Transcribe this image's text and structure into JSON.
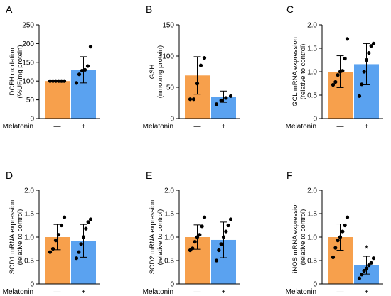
{
  "colors": {
    "control": "#f7a04c",
    "melatonin": "#5aa2f0",
    "axis": "#000000",
    "dot": "#000000"
  },
  "treatment_label": "Melatonin",
  "treatment_ticks": [
    "—",
    "+"
  ],
  "chart_data": [
    {
      "type": "bar",
      "panel": "A",
      "ylabel_lines": [
        "DCFH oxidation",
        "(%UF/mg protein)"
      ],
      "ylim": [
        0,
        250
      ],
      "yticks": [
        0,
        50,
        100,
        150,
        200,
        250
      ],
      "categories": [
        "—",
        "+"
      ],
      "values": [
        100,
        130
      ],
      "errors": [
        0,
        35
      ],
      "points": [
        [
          100,
          100,
          100,
          100,
          100,
          100
        ],
        [
          95,
          118,
          128,
          130,
          140,
          192
        ]
      ],
      "significance": [
        "",
        ""
      ]
    },
    {
      "type": "bar",
      "panel": "B",
      "ylabel_lines": [
        "GSH",
        "(nmol/mg protein)"
      ],
      "ylim": [
        0,
        150
      ],
      "yticks": [
        0,
        50,
        100,
        150
      ],
      "categories": [
        "—",
        "+"
      ],
      "values": [
        69,
        35
      ],
      "errors": [
        30,
        9
      ],
      "points": [
        [
          31,
          31,
          56,
          85,
          97
        ],
        [
          23,
          29,
          33,
          36
        ]
      ],
      "significance": [
        "",
        ""
      ]
    },
    {
      "type": "bar",
      "panel": "C",
      "ylabel_lines": [
        "GCL mRNA expression",
        "(relative to control)"
      ],
      "ylim": [
        0,
        2.0
      ],
      "yticks": [
        "0",
        "0.5",
        "1.0",
        "1.5",
        "2.0"
      ],
      "categories": [
        "—",
        "+"
      ],
      "values": [
        1.0,
        1.16
      ],
      "errors": [
        0.34,
        0.44
      ],
      "points": [
        [
          0.72,
          0.78,
          0.93,
          1.0,
          1.02,
          1.28,
          1.7
        ],
        [
          0.48,
          0.73,
          1.0,
          1.25,
          1.4,
          1.55,
          1.6
        ]
      ],
      "significance": [
        "",
        ""
      ]
    },
    {
      "type": "bar",
      "panel": "D",
      "ylabel_lines": [
        "SOD1 mRNA expression",
        "(relative to control)"
      ],
      "ylim": [
        0,
        2.0
      ],
      "yticks": [
        "0",
        "0.5",
        "1.0",
        "1.5",
        "2.0"
      ],
      "categories": [
        "—",
        "+"
      ],
      "values": [
        1.0,
        0.92
      ],
      "errors": [
        0.27,
        0.35
      ],
      "points": [
        [
          0.68,
          0.75,
          0.93,
          1.05,
          1.25,
          1.42
        ],
        [
          0.55,
          0.68,
          0.85,
          1.0,
          1.18,
          1.32,
          1.38
        ]
      ],
      "significance": [
        "",
        ""
      ]
    },
    {
      "type": "bar",
      "panel": "E",
      "ylabel_lines": [
        "SOD2 mRNA expression",
        "(relative to control)"
      ],
      "ylim": [
        0,
        2.0
      ],
      "yticks": [
        "0",
        "0.5",
        "1.0",
        "1.5",
        "2.0"
      ],
      "categories": [
        "—",
        "+"
      ],
      "values": [
        1.0,
        0.94
      ],
      "errors": [
        0.26,
        0.38
      ],
      "points": [
        [
          0.72,
          0.76,
          0.9,
          1.0,
          1.05,
          1.23,
          1.42
        ],
        [
          0.5,
          0.72,
          0.85,
          1.0,
          1.12,
          1.25,
          1.38
        ]
      ],
      "significance": [
        "",
        ""
      ]
    },
    {
      "type": "bar",
      "panel": "F",
      "ylabel_lines": [
        "iNOS mRNA expression",
        "(relative to control)"
      ],
      "ylim": [
        0,
        2.0
      ],
      "yticks": [
        "0",
        "0.5",
        "1.0",
        "1.5",
        "2.0"
      ],
      "categories": [
        "—",
        "+"
      ],
      "values": [
        1.0,
        0.4
      ],
      "errors": [
        0.28,
        0.19
      ],
      "points": [
        [
          0.57,
          0.77,
          0.93,
          1.0,
          1.12,
          1.25,
          1.42
        ],
        [
          0.12,
          0.2,
          0.28,
          0.33,
          0.4,
          0.45,
          0.55
        ]
      ],
      "significance": [
        "",
        "*"
      ]
    }
  ]
}
